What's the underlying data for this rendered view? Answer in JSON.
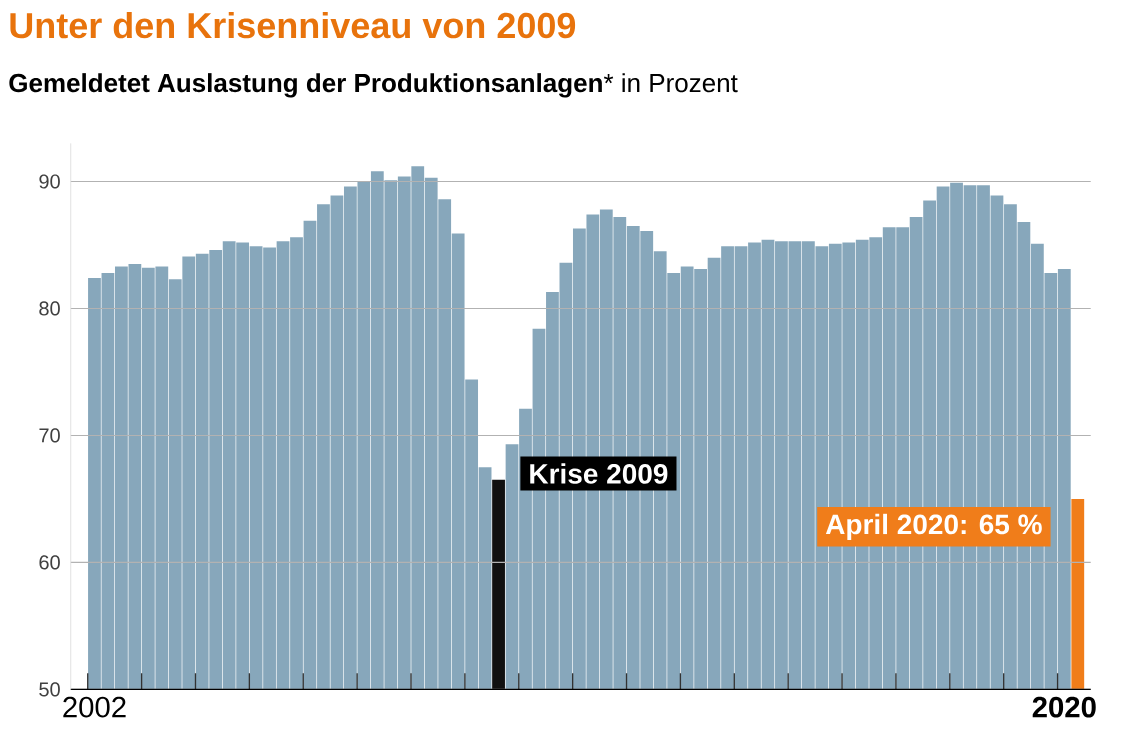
{
  "chart_data": {
    "type": "bar",
    "title": "Unter den Krisenniveau von 2009",
    "subtitle": "**Gemeldetet Auslastung der Produktionsanlagen*** in Prozent",
    "categories": [
      "2002",
      null,
      null,
      null,
      null,
      null,
      null,
      null,
      null,
      null,
      null,
      null,
      null,
      null,
      null,
      null,
      null,
      null,
      null,
      null,
      null,
      null,
      null,
      null,
      null,
      null,
      null,
      null,
      null,
      null,
      null,
      null,
      null,
      null,
      null,
      null,
      null,
      null,
      null,
      null,
      null,
      null,
      null,
      null,
      null,
      null,
      null,
      null,
      null,
      null,
      null,
      null,
      null,
      null,
      null,
      null,
      null,
      null,
      null,
      null,
      null,
      null,
      null,
      null,
      null,
      null,
      null,
      null,
      null,
      null,
      null,
      null,
      "2020",
      null
    ],
    "values": [
      82.4,
      82.8,
      83.3,
      83.5,
      83.2,
      83.3,
      82.3,
      84.1,
      84.3,
      84.6,
      85.3,
      85.2,
      84.9,
      84.8,
      85.3,
      85.6,
      86.9,
      88.2,
      88.9,
      89.6,
      90.0,
      90.8,
      90.1,
      90.4,
      91.2,
      90.3,
      88.6,
      85.9,
      74.4,
      67.5,
      66.5,
      69.3,
      72.1,
      78.4,
      81.3,
      83.6,
      86.3,
      87.4,
      87.8,
      87.2,
      86.5,
      86.1,
      84.5,
      82.8,
      83.3,
      83.1,
      84.0,
      84.9,
      84.9,
      85.2,
      85.4,
      85.3,
      85.3,
      85.3,
      84.9,
      85.1,
      85.2,
      85.4,
      85.6,
      86.4,
      86.4,
      87.2,
      88.5,
      89.6,
      89.9,
      89.7,
      89.7,
      88.9,
      88.2,
      86.8,
      85.1,
      82.8,
      83.1,
      65
    ],
    "colors": [
      "#87a7bb",
      "#87a7bb",
      "#87a7bb",
      "#87a7bb",
      "#87a7bb",
      "#87a7bb",
      "#87a7bb",
      "#87a7bb",
      "#87a7bb",
      "#87a7bb",
      "#87a7bb",
      "#87a7bb",
      "#87a7bb",
      "#87a7bb",
      "#87a7bb",
      "#87a7bb",
      "#87a7bb",
      "#87a7bb",
      "#87a7bb",
      "#87a7bb",
      "#87a7bb",
      "#87a7bb",
      "#87a7bb",
      "#87a7bb",
      "#87a7bb",
      "#87a7bb",
      "#87a7bb",
      "#87a7bb",
      "#87a7bb",
      "#87a7bb",
      "#111111",
      "#87a7bb",
      "#87a7bb",
      "#87a7bb",
      "#87a7bb",
      "#87a7bb",
      "#87a7bb",
      "#87a7bb",
      "#87a7bb",
      "#87a7bb",
      "#87a7bb",
      "#87a7bb",
      "#87a7bb",
      "#87a7bb",
      "#87a7bb",
      "#87a7bb",
      "#87a7bb",
      "#87a7bb",
      "#87a7bb",
      "#87a7bb",
      "#87a7bb",
      "#87a7bb",
      "#87a7bb",
      "#87a7bb",
      "#87a7bb",
      "#87a7bb",
      "#87a7bb",
      "#87a7bb",
      "#87a7bb",
      "#87a7bb",
      "#87a7bb",
      "#87a7bb",
      "#87a7bb",
      "#87a7bb",
      "#87a7bb",
      "#87a7bb",
      "#87a7bb",
      "#87a7bb",
      "#87a7bb",
      "#87a7bb",
      "#87a7bb",
      "#87a7bb",
      "#87a7bb",
      "#f07d1a"
    ],
    "annotations": [
      "Krise 2009",
      "April 2020: 65 %"
    ],
    "ylim": [
      50,
      93
    ],
    "yticks": [
      50,
      60,
      70,
      80,
      90
    ],
    "grid": "y"
  }
}
